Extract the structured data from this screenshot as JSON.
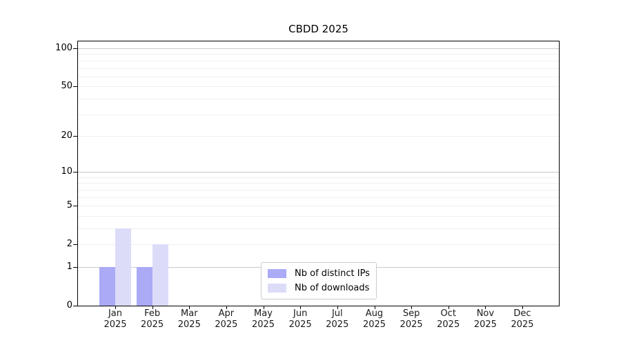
{
  "chart_data": {
    "type": "bar",
    "title": "CBDD 2025",
    "scale": "log1p",
    "grid": true,
    "legend_position": "bottom-center-inside",
    "categories": [
      {
        "month": "Jan",
        "year": "2025"
      },
      {
        "month": "Feb",
        "year": "2025"
      },
      {
        "month": "Mar",
        "year": "2025"
      },
      {
        "month": "Apr",
        "year": "2025"
      },
      {
        "month": "May",
        "year": "2025"
      },
      {
        "month": "Jun",
        "year": "2025"
      },
      {
        "month": "Jul",
        "year": "2025"
      },
      {
        "month": "Aug",
        "year": "2025"
      },
      {
        "month": "Sep",
        "year": "2025"
      },
      {
        "month": "Oct",
        "year": "2025"
      },
      {
        "month": "Nov",
        "year": "2025"
      },
      {
        "month": "Dec",
        "year": "2025"
      }
    ],
    "series": [
      {
        "name": "Nb of distinct IPs",
        "color": "#aaaaf7",
        "values": [
          1,
          1,
          0,
          0,
          0,
          0,
          0,
          0,
          0,
          0,
          0,
          0
        ]
      },
      {
        "name": "Nb of downloads",
        "color": "#dcdcf9",
        "values": [
          3,
          2,
          0,
          0,
          0,
          0,
          0,
          0,
          0,
          0,
          0,
          0
        ]
      }
    ],
    "y_axis": {
      "ticks": [
        0,
        1,
        2,
        5,
        10,
        20,
        50,
        100
      ],
      "max": 100,
      "major_gridlines": [
        1,
        10,
        100
      ],
      "minor_gridlines": [
        2,
        3,
        4,
        5,
        6,
        7,
        8,
        9,
        20,
        30,
        40,
        50,
        60,
        70,
        80,
        90
      ]
    },
    "colors": {
      "major_grid": "#c9c9c9",
      "minor_grid": "#efefef",
      "spine": "#000000",
      "background": "#ffffff"
    }
  }
}
